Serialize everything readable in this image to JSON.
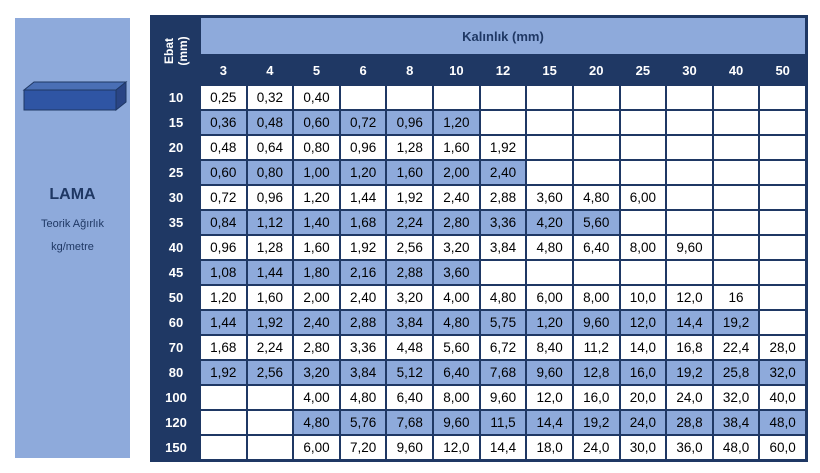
{
  "panel": {
    "icon_label": "LAMA",
    "subtitle": "Teorik Ağırlık",
    "unit": "kg/metre"
  },
  "table": {
    "corner": "Ebat (mm)",
    "header": "Kalınlık (mm)",
    "columns": [
      3,
      4,
      5,
      6,
      8,
      10,
      12,
      15,
      20,
      25,
      30,
      40,
      50
    ],
    "rows": [
      {
        "size": 10,
        "cells": [
          "0,25",
          "0,32",
          "0,40",
          null,
          null,
          null,
          null,
          null,
          null,
          null,
          null,
          null,
          null
        ]
      },
      {
        "size": 15,
        "cells": [
          "0,36",
          "0,48",
          "0,60",
          "0,72",
          "0,96",
          "1,20",
          null,
          null,
          null,
          null,
          null,
          null,
          null
        ]
      },
      {
        "size": 20,
        "cells": [
          "0,48",
          "0,64",
          "0,80",
          "0,96",
          "1,28",
          "1,60",
          "1,92",
          null,
          null,
          null,
          null,
          null,
          null
        ]
      },
      {
        "size": 25,
        "cells": [
          "0,60",
          "0,80",
          "1,00",
          "1,20",
          "1,60",
          "2,00",
          "2,40",
          null,
          null,
          null,
          null,
          null,
          null
        ]
      },
      {
        "size": 30,
        "cells": [
          "0,72",
          "0,96",
          "1,20",
          "1,44",
          "1,92",
          "2,40",
          "2,88",
          "3,60",
          "4,80",
          "6,00",
          null,
          null,
          null
        ]
      },
      {
        "size": 35,
        "cells": [
          "0,84",
          "1,12",
          "1,40",
          "1,68",
          "2,24",
          "2,80",
          "3,36",
          "4,20",
          "5,60",
          null,
          null,
          null,
          null
        ]
      },
      {
        "size": 40,
        "cells": [
          "0,96",
          "1,28",
          "1,60",
          "1,92",
          "2,56",
          "3,20",
          "3,84",
          "4,80",
          "6,40",
          "8,00",
          "9,60",
          null,
          null
        ]
      },
      {
        "size": 45,
        "cells": [
          "1,08",
          "1,44",
          "1,80",
          "2,16",
          "2,88",
          "3,60",
          null,
          null,
          null,
          null,
          null,
          null,
          null
        ]
      },
      {
        "size": 50,
        "cells": [
          "1,20",
          "1,60",
          "2,00",
          "2,40",
          "3,20",
          "4,00",
          "4,80",
          "6,00",
          "8,00",
          "10,0",
          "12,0",
          "16",
          null
        ]
      },
      {
        "size": 60,
        "cells": [
          "1,44",
          "1,92",
          "2,40",
          "2,88",
          "3,84",
          "4,80",
          "5,75",
          "1,20",
          "9,60",
          "12,0",
          "14,4",
          "19,2",
          null
        ]
      },
      {
        "size": 70,
        "cells": [
          "1,68",
          "2,24",
          "2,80",
          "3,36",
          "4,48",
          "5,60",
          "6,72",
          "8,40",
          "11,2",
          "14,0",
          "16,8",
          "22,4",
          "28,0"
        ]
      },
      {
        "size": 80,
        "cells": [
          "1,92",
          "2,56",
          "3,20",
          "3,84",
          "5,12",
          "6,40",
          "7,68",
          "9,60",
          "12,8",
          "16,0",
          "19,2",
          "25,8",
          "32,0"
        ]
      },
      {
        "size": 100,
        "cells": [
          null,
          null,
          "4,00",
          "4,80",
          "6,40",
          "8,00",
          "9,60",
          "12,0",
          "16,0",
          "20,0",
          "24,0",
          "32,0",
          "40,0"
        ]
      },
      {
        "size": 120,
        "cells": [
          null,
          null,
          "4,80",
          "5,76",
          "7,68",
          "9,60",
          "11,5",
          "14,4",
          "19,2",
          "24,0",
          "28,8",
          "38,4",
          "48,0"
        ]
      },
      {
        "size": 150,
        "cells": [
          null,
          null,
          "6,00",
          "7,20",
          "9,60",
          "12,0",
          "14,4",
          "18,0",
          "24,0",
          "30,0",
          "36,0",
          "48,0",
          "60,0"
        ]
      }
    ]
  }
}
